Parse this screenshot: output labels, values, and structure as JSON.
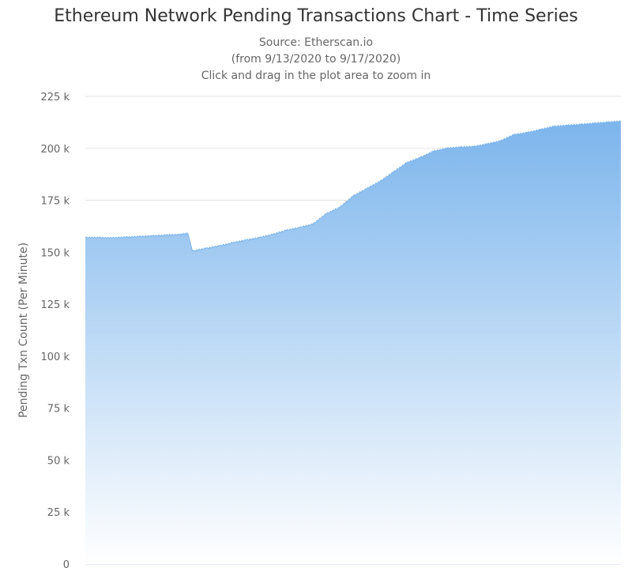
{
  "chart_data": {
    "type": "area",
    "title": "Ethereum Network Pending Transactions Chart - Time Series",
    "subtitle": [
      "Source: Etherscan.io",
      "(from 9/13/2020 to 9/17/2020)",
      "Click and drag in the plot area to zoom in"
    ],
    "ylabel": "Pending Txn Count (Per Minute)",
    "xlabel": "",
    "xlim": [
      "2020-09-13",
      "2020-09-17"
    ],
    "ylim": [
      0,
      225000
    ],
    "yticks": [
      0,
      25000,
      50000,
      75000,
      100000,
      125000,
      150000,
      175000,
      200000,
      225000
    ],
    "ytick_labels": [
      "0",
      "25 k",
      "50 k",
      "75 k",
      "100 k",
      "125 k",
      "150 k",
      "175 k",
      "200 k",
      "225 k"
    ],
    "grid": true,
    "legend": "none",
    "colors": {
      "fill_top": "#7cb5ec",
      "fill_bottom": "#ffffff",
      "grid": "#e6e6e6"
    },
    "series": [
      {
        "x": [
          "2020-09-13 00:00",
          "2020-09-13 03:00",
          "2020-09-13 06:00",
          "2020-09-13 09:00",
          "2020-09-13 12:00",
          "2020-09-13 15:00",
          "2020-09-13 18:00",
          "2020-09-13 21:00",
          "2020-09-13 23:00",
          "2020-09-14 00:00",
          "2020-09-14 03:00",
          "2020-09-14 06:00",
          "2020-09-14 09:00",
          "2020-09-14 12:00",
          "2020-09-14 15:00",
          "2020-09-14 18:00",
          "2020-09-14 21:00",
          "2020-09-15 00:00",
          "2020-09-15 03:00",
          "2020-09-15 06:00",
          "2020-09-15 09:00",
          "2020-09-15 12:00",
          "2020-09-15 15:00",
          "2020-09-15 18:00",
          "2020-09-15 21:00",
          "2020-09-16 00:00",
          "2020-09-16 03:00",
          "2020-09-16 06:00",
          "2020-09-16 09:00",
          "2020-09-16 12:00",
          "2020-09-16 15:00",
          "2020-09-16 18:00",
          "2020-09-16 21:00",
          "2020-09-17 00:00",
          "2020-09-17 03:00",
          "2020-09-17 06:00",
          "2020-09-17 09:00",
          "2020-09-17 12:00",
          "2020-09-17 15:00",
          "2020-09-17 18:00",
          "2020-09-17 21:00",
          "2020-09-17 23:59"
        ],
        "values": [
          157000,
          157000,
          156800,
          157200,
          157500,
          157800,
          158200,
          158400,
          159000,
          150500,
          151800,
          153000,
          154500,
          155800,
          157000,
          158500,
          160500,
          161800,
          163500,
          168500,
          171500,
          177000,
          180500,
          184000,
          188500,
          193000,
          195500,
          198500,
          200000,
          200500,
          200800,
          202000,
          203500,
          206500,
          207500,
          209000,
          210500,
          211000,
          211500,
          212000,
          212500,
          213000
        ]
      }
    ]
  }
}
